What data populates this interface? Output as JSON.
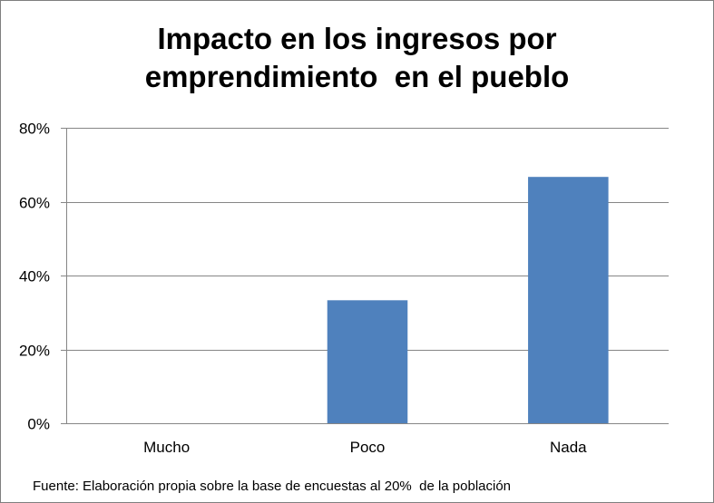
{
  "chart_data": {
    "type": "bar",
    "title_lines": [
      "Impacto en los ingresos por",
      "emprendimiento  en el pueblo"
    ],
    "categories": [
      "Mucho",
      "Poco",
      "Nada"
    ],
    "values": [
      0,
      33.3,
      66.7
    ],
    "ylim": [
      0,
      80
    ],
    "yticks": [
      0,
      20,
      40,
      60,
      80
    ],
    "ytick_labels": [
      "0%",
      "20%",
      "40%",
      "60%",
      "80%"
    ],
    "xlabel": "",
    "ylabel": "",
    "grid": true,
    "legend": "none",
    "bar_color": "#4f81bd",
    "source_note": "Fuente: Elaboración propia sobre la base de encuestas al 20%  de la población"
  }
}
